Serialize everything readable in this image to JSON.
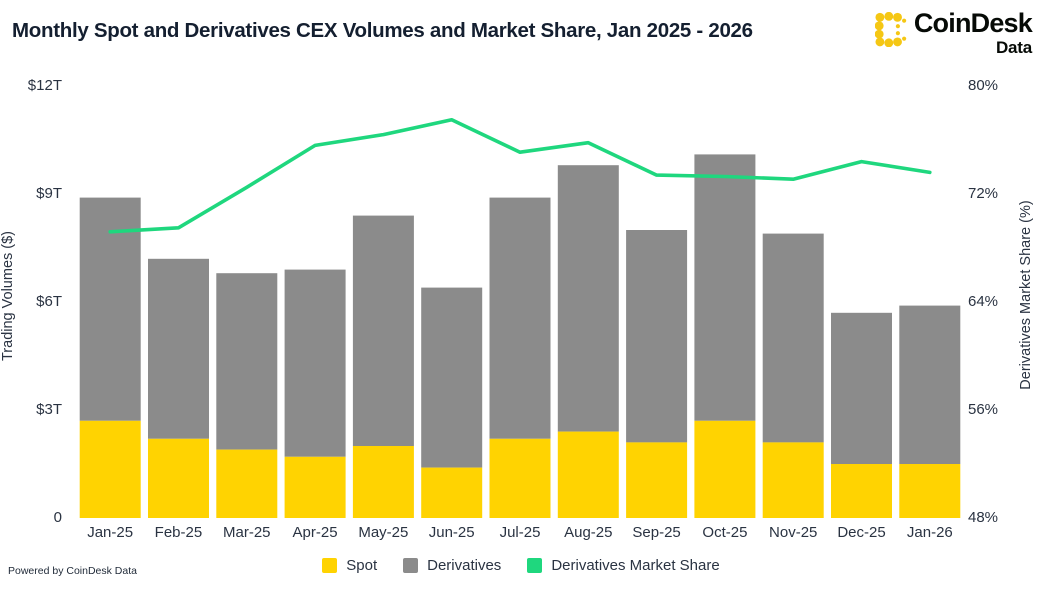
{
  "header": {
    "title": "Monthly Spot and Derivatives CEX Volumes and Market Share, Jan 2025 - 2026"
  },
  "logo": {
    "name": "CoinDesk",
    "sub": "Data",
    "icon": "coindesk-dots-icon",
    "icon_color": "#F5C714",
    "text_color": "#060a06"
  },
  "footer": {
    "powered_by": "Powered by CoinDesk Data"
  },
  "legend": [
    {
      "label": "Spot",
      "color": "#FFD301"
    },
    {
      "label": "Derivatives",
      "color": "#8B8B8B"
    },
    {
      "label": "Derivatives Market Share",
      "color": "#1FD77E"
    }
  ],
  "chart_data": {
    "type": "bar",
    "subtype": "stacked-bars-with-line",
    "title": "Monthly Spot and Derivatives CEX Volumes and Market Share, Jan 2025 - 2026",
    "categories": [
      "Jan-25",
      "Feb-25",
      "Mar-25",
      "Apr-25",
      "May-25",
      "Jun-25",
      "Jul-25",
      "Aug-25",
      "Sep-25",
      "Oct-25",
      "Nov-25",
      "Dec-25",
      "Jan-26"
    ],
    "series": [
      {
        "name": "Spot",
        "type": "bar",
        "stack": "volume",
        "color": "#FFD301",
        "unit": "trillion USD",
        "values": [
          2.7,
          2.2,
          1.9,
          1.7,
          2.0,
          1.4,
          2.2,
          2.4,
          2.1,
          2.7,
          2.1,
          1.5,
          1.5
        ]
      },
      {
        "name": "Derivatives",
        "type": "bar",
        "stack": "volume",
        "color": "#8B8B8B",
        "unit": "trillion USD",
        "values": [
          6.2,
          5.0,
          4.9,
          5.2,
          6.4,
          5.0,
          6.7,
          7.4,
          5.9,
          7.4,
          5.8,
          4.2,
          4.4
        ]
      },
      {
        "name": "Derivatives Market Share",
        "type": "line",
        "axis": "right",
        "color": "#1FD77E",
        "unit": "%",
        "values": [
          69.2,
          69.5,
          72.5,
          75.6,
          76.4,
          77.5,
          75.1,
          75.8,
          73.4,
          73.3,
          73.1,
          74.4,
          73.6
        ]
      }
    ],
    "left_axis": {
      "label": "Trading Volumes ($)",
      "min": 0,
      "max": 12,
      "ticks": [
        {
          "value": 12,
          "label": "$12T"
        },
        {
          "value": 9,
          "label": "$9T"
        },
        {
          "value": 6,
          "label": "$6T"
        },
        {
          "value": 3,
          "label": "$3T"
        },
        {
          "value": 0,
          "label": "0"
        }
      ]
    },
    "right_axis": {
      "label": "Derivatives Market Share (%)",
      "min": 48,
      "max": 80,
      "ticks": [
        {
          "value": 80,
          "label": "80%"
        },
        {
          "value": 72,
          "label": "72%"
        },
        {
          "value": 64,
          "label": "64%"
        },
        {
          "value": 56,
          "label": "56%"
        },
        {
          "value": 48,
          "label": "48%"
        }
      ]
    },
    "grid": false,
    "legend_position": "bottom-center"
  }
}
